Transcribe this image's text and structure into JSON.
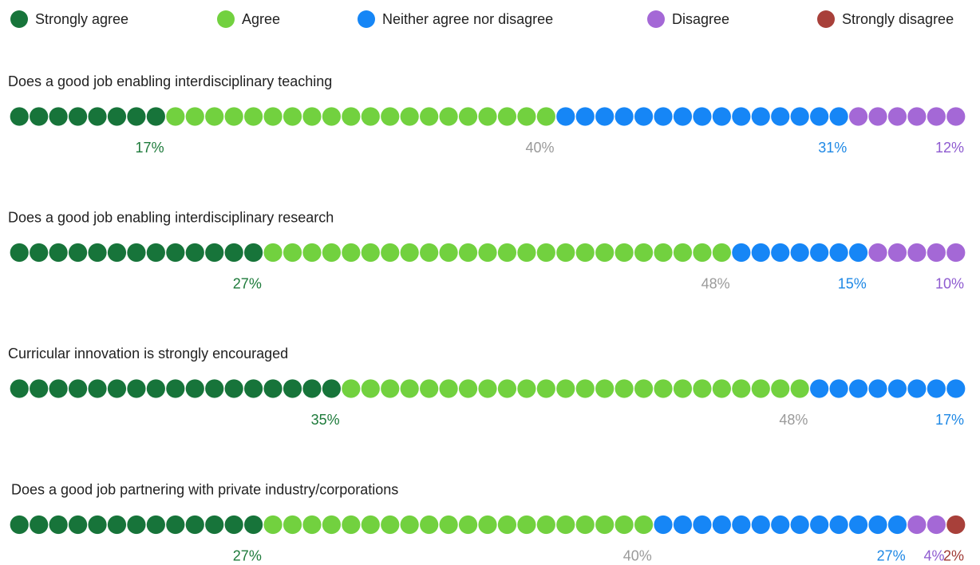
{
  "chart_data": {
    "type": "dot-stack",
    "categories": [
      "Does a good job enabling interdisciplinary teaching",
      "Does a good job enabling interdisciplinary research",
      "Curricular innovation is strongly encouraged",
      "Does a good job partnering with private industry/corporations"
    ],
    "series": [
      {
        "name": "Strongly agree",
        "color": "#17743a",
        "label_color": "#1d7a3a",
        "values": [
          17,
          27,
          35,
          27
        ],
        "value_labels": [
          "17%",
          "27%",
          "35%",
          "27%"
        ]
      },
      {
        "name": "Agree",
        "color": "#72d13f",
        "label_color": "#9a9a9a",
        "values": [
          40,
          48,
          48,
          40
        ],
        "value_labels": [
          "40%",
          "48%",
          "48%",
          "40%"
        ]
      },
      {
        "name": "Neither agree nor disagree",
        "color": "#1686f6",
        "label_color": "#1e88e5",
        "values": [
          31,
          15,
          17,
          27
        ],
        "value_labels": [
          "31%",
          "15%",
          "17%",
          "27%"
        ]
      },
      {
        "name": "Disagree",
        "color": "#a468d6",
        "label_color": "#8e5bd0",
        "values": [
          12,
          10,
          null,
          4
        ],
        "value_labels": [
          "12%",
          "10%",
          null,
          "4%"
        ]
      },
      {
        "name": "Strongly disagree",
        "color": "#a8403a",
        "label_color": "#a03a35",
        "values": [
          null,
          null,
          null,
          2
        ],
        "value_labels": [
          null,
          null,
          null,
          "2%"
        ]
      }
    ],
    "ylim": [
      0,
      100
    ],
    "legend": "top"
  }
}
